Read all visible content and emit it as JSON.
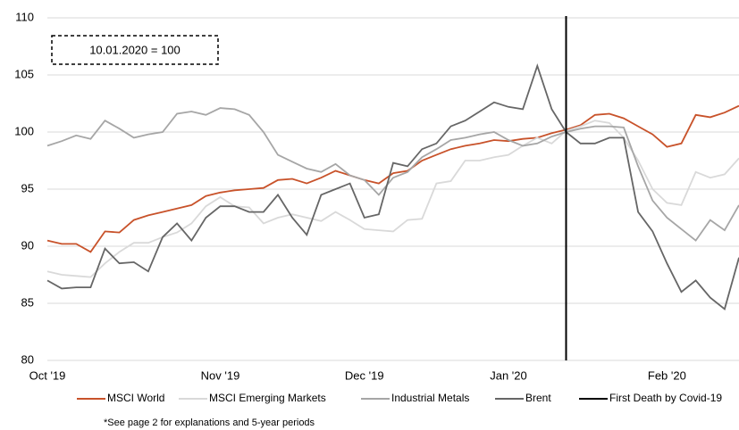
{
  "chart_data": {
    "type": "line",
    "annotation": "10.01.2020 = 100",
    "footnote": "*See page 2 for explanations and 5-year periods",
    "categories": [
      "Oct '19",
      null,
      null,
      null,
      null,
      null,
      null,
      null,
      null,
      null,
      null,
      null,
      "Nov '19",
      null,
      null,
      null,
      null,
      null,
      null,
      null,
      null,
      null,
      "Dec '19",
      null,
      null,
      null,
      null,
      null,
      null,
      null,
      null,
      null,
      "Jan '20",
      null,
      null,
      null,
      null,
      null,
      null,
      null,
      null,
      null,
      null,
      "Feb '20",
      null,
      null,
      null,
      null,
      null
    ],
    "series": [
      {
        "name": "MSCI World",
        "color": "#c8522a",
        "values": [
          90.5,
          90.2,
          90.2,
          89.5,
          91.3,
          91.2,
          92.3,
          92.7,
          93.0,
          93.3,
          93.6,
          94.4,
          94.7,
          94.9,
          95.0,
          95.1,
          95.8,
          95.9,
          95.5,
          96.0,
          96.6,
          96.2,
          95.8,
          95.5,
          96.4,
          96.6,
          97.5,
          98.0,
          98.5,
          98.8,
          99.0,
          99.3,
          99.2,
          99.4,
          99.5,
          99.9,
          100.2,
          100.6,
          101.5,
          101.6,
          101.2,
          100.5,
          99.8,
          98.7,
          99.0,
          101.5,
          101.3,
          101.7,
          102.3
        ]
      },
      {
        "name": "MSCI Emerging Markets",
        "color": "#d9d9d9",
        "values": [
          87.8,
          87.5,
          87.4,
          87.3,
          88.5,
          89.5,
          90.3,
          90.3,
          90.8,
          91.2,
          92.0,
          93.5,
          94.3,
          93.5,
          93.4,
          92.0,
          92.5,
          92.8,
          92.5,
          92.2,
          93.0,
          92.3,
          91.5,
          91.4,
          91.3,
          92.3,
          92.4,
          95.5,
          95.7,
          97.5,
          97.5,
          97.8,
          98.0,
          98.8,
          99.5,
          99.0,
          100.1,
          100.5,
          101.0,
          100.8,
          99.5,
          97.5,
          95.0,
          93.8,
          93.6,
          96.5,
          96.0,
          96.3,
          97.7
        ]
      },
      {
        "name": "Industrial Metals",
        "color": "#a6a6a6",
        "values": [
          98.8,
          99.2,
          99.7,
          99.4,
          101.0,
          100.3,
          99.5,
          99.8,
          100.0,
          101.6,
          101.8,
          101.5,
          102.1,
          102.0,
          101.5,
          100.0,
          98.0,
          97.4,
          96.8,
          96.5,
          97.2,
          96.2,
          95.8,
          94.5,
          96.0,
          96.5,
          97.8,
          98.5,
          99.3,
          99.5,
          99.8,
          100.0,
          99.3,
          98.8,
          99.0,
          99.6,
          100.0,
          100.3,
          100.5,
          100.5,
          100.4,
          97.0,
          94.0,
          92.5,
          91.5,
          90.5,
          92.3,
          91.4,
          93.6
        ]
      },
      {
        "name": "Brent",
        "color": "#666666",
        "values": [
          87.0,
          86.3,
          86.4,
          86.4,
          89.8,
          88.5,
          88.6,
          87.8,
          90.8,
          92.0,
          90.5,
          92.5,
          93.5,
          93.5,
          93.0,
          93.0,
          94.5,
          92.5,
          91.0,
          94.5,
          95.0,
          95.5,
          92.5,
          92.8,
          97.3,
          97.0,
          98.5,
          99.0,
          100.5,
          101.0,
          101.8,
          102.6,
          102.2,
          102.0,
          105.8,
          102.0,
          100.0,
          99.0,
          99.0,
          99.5,
          99.5,
          93.0,
          91.3,
          88.5,
          86.0,
          87.0,
          85.5,
          84.5,
          89.0
        ]
      }
    ],
    "event": {
      "name": "First Death by Covid-19",
      "color": "#000000",
      "category_index": 36
    },
    "ylim": [
      80,
      110
    ],
    "yticks": [
      80,
      85,
      90,
      95,
      100,
      105,
      110
    ],
    "grid": true
  }
}
